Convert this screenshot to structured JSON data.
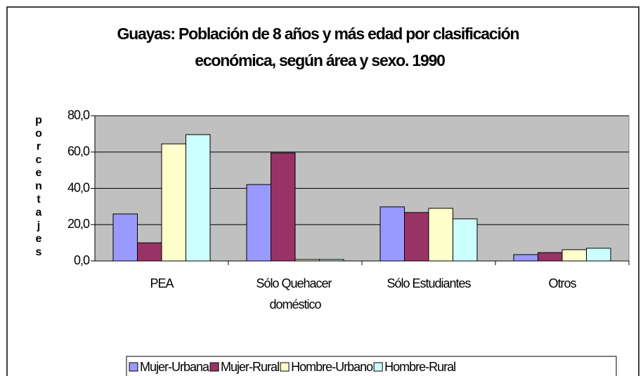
{
  "chart_data": {
    "type": "bar",
    "title": "Guayas: Población de 8 años y más edad por clasificación económica, según área y sexo. 1990",
    "y_axis_label": "porcentajes",
    "categories": [
      "PEA",
      "Sólo Quehacer doméstico",
      "Sólo Estudiantes",
      "Otros"
    ],
    "series": [
      {
        "name": "Mujer-Urbana",
        "color": "#9999ff",
        "values": [
          25.9,
          42.1,
          29.8,
          3.5
        ]
      },
      {
        "name": "Mujer-Rural",
        "color": "#993366",
        "values": [
          10.0,
          59.5,
          26.7,
          4.6
        ]
      },
      {
        "name": "Hombre-Urbano",
        "color": "#ffffcc",
        "values": [
          64.5,
          0.8,
          29.0,
          6.2
        ]
      },
      {
        "name": "Hombre-Rural",
        "color": "#ccffff",
        "values": [
          69.6,
          0.8,
          23.2,
          7.0
        ]
      }
    ],
    "ylim": [
      0,
      80
    ],
    "yticks": [
      {
        "value": 0,
        "label": "0,0"
      },
      {
        "value": 20,
        "label": "20,0"
      },
      {
        "value": 40,
        "label": "40,0"
      },
      {
        "value": 60,
        "label": "60,0"
      },
      {
        "value": 80,
        "label": "80,0"
      }
    ],
    "grid": true,
    "legend": "bottom"
  }
}
